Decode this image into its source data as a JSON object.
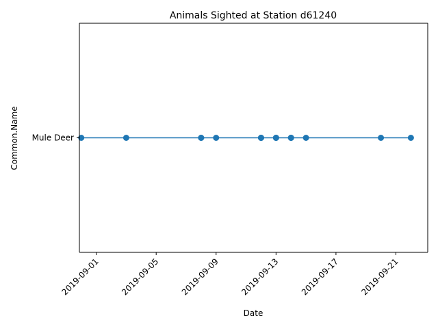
{
  "chart_data": {
    "type": "line",
    "title": "Animals Sighted at Station d61240",
    "xlabel": "Date",
    "ylabel": "Common.Name",
    "x_tick_labels": [
      "2019-09-01",
      "2019-09-05",
      "2019-09-09",
      "2019-09-13",
      "2019-09-17",
      "2019-09-21"
    ],
    "categories_y": [
      "Mule Deer"
    ],
    "x_range": [
      "2019-08-30T21:00",
      "2019-09-23T03:00"
    ],
    "grid": false,
    "legend": "none",
    "colors": {
      "series": "#1f77b4",
      "axes": "#000000"
    },
    "series": [
      {
        "marker": "circle",
        "x": [
          "2019-08-31",
          "2019-09-03",
          "2019-09-08",
          "2019-09-08",
          "2019-09-09",
          "2019-09-12",
          "2019-09-12",
          "2019-09-12",
          "2019-09-13",
          "2019-09-13",
          "2019-09-13",
          "2019-09-14",
          "2019-09-14",
          "2019-09-14",
          "2019-09-15",
          "2019-09-20",
          "2019-09-22"
        ],
        "y": [
          "Mule Deer",
          "Mule Deer",
          "Mule Deer",
          "Mule Deer",
          "Mule Deer",
          "Mule Deer",
          "Mule Deer",
          "Mule Deer",
          "Mule Deer",
          "Mule Deer",
          "Mule Deer",
          "Mule Deer",
          "Mule Deer",
          "Mule Deer",
          "Mule Deer",
          "Mule Deer",
          "Mule Deer"
        ]
      }
    ]
  }
}
